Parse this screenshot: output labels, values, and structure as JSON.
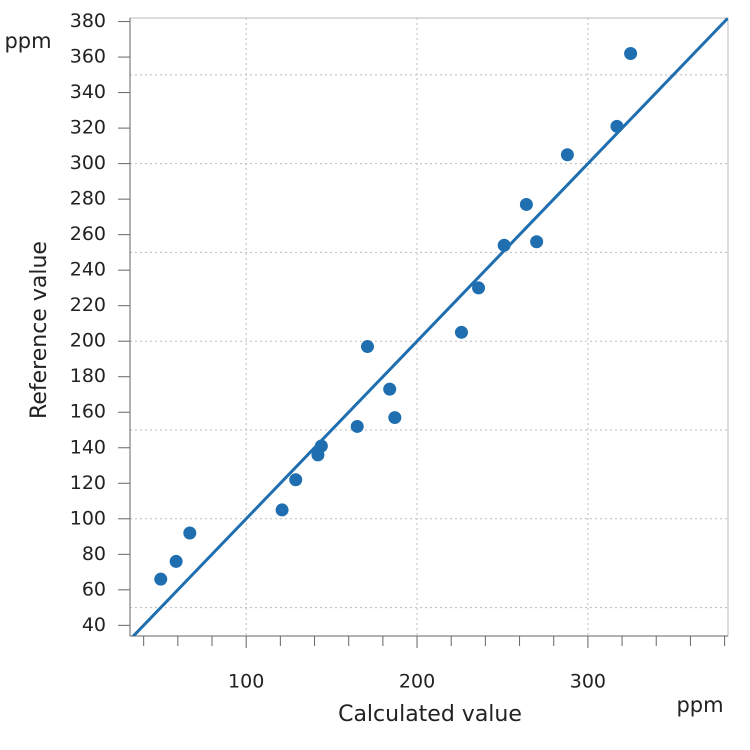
{
  "chart_data": {
    "type": "scatter",
    "x_label": "Calculated value",
    "y_label": "Reference value",
    "x_unit": "ppm",
    "y_unit": "ppm",
    "series": [
      {
        "color": "#1f6fb0",
        "x": [
          50,
          59,
          67,
          121,
          129,
          142,
          144,
          165,
          171,
          184,
          187,
          226,
          236,
          251,
          264,
          270,
          288,
          317,
          325
        ],
        "values": [
          66,
          76,
          92,
          105,
          122,
          136,
          141,
          152,
          197,
          173,
          157,
          205,
          230,
          254,
          277,
          256,
          305,
          321,
          362
        ]
      }
    ],
    "reference_line": {
      "slope": 1,
      "intercept": 0,
      "color": "#1f6fb0"
    },
    "xlim": [
      32,
      382
    ],
    "ylim": [
      34,
      382
    ],
    "xticks": [
      100,
      200,
      300
    ],
    "xminorticks": [
      40,
      60,
      80,
      120,
      140,
      160,
      180,
      220,
      240,
      260,
      280,
      320,
      340,
      360,
      380
    ],
    "yticks": [
      40,
      60,
      80,
      100,
      120,
      140,
      160,
      180,
      200,
      220,
      240,
      260,
      280,
      300,
      320,
      340,
      360,
      380
    ],
    "ygrid": [
      50,
      100,
      150,
      200,
      250,
      300,
      350
    ],
    "grid": true
  }
}
